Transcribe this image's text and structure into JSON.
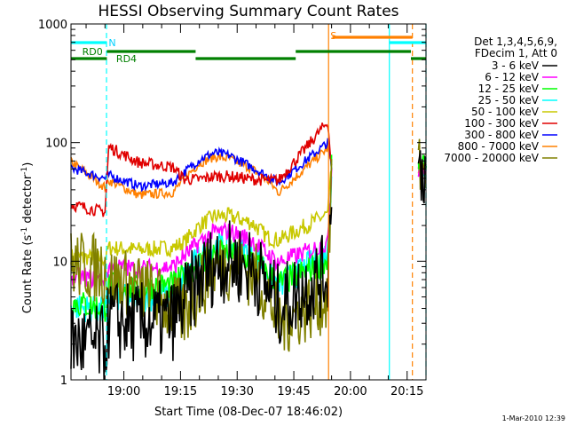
{
  "chart_data": {
    "type": "line",
    "title": "HESSI Observing Summary Count Rates",
    "xlabel": "Start Time (08-Dec-07 18:46:02)",
    "ylabel_main": "Count Rate (s",
    "ylabel_sup1": "-1",
    "ylabel_mid": " detector",
    "ylabel_sup2": "-1",
    "ylabel_end": ")",
    "y_scale": "log",
    "ylim": [
      1,
      1000
    ],
    "xlim_minutes": [
      0,
      94
    ],
    "x_tick_minutes": [
      14,
      29,
      44,
      59,
      74,
      89
    ],
    "x_tick_labels": [
      "19:00",
      "19:15",
      "19:30",
      "19:45",
      "20:00",
      "20:15"
    ],
    "y_ticks": [
      1,
      10,
      100,
      1000
    ],
    "y_tick_labels": [
      "1",
      "10",
      "100",
      "1000"
    ],
    "legend_header": [
      "Det 1,3,4,5,6,9,",
      "FDecim 1, Att 0"
    ],
    "legend_placement": "right",
    "timestamp": "1-Mar-2010 12:39",
    "series": [
      {
        "name": "3 - 6 keV",
        "color": "#000000"
      },
      {
        "name": "6 - 12 keV",
        "color": "#ff00ff"
      },
      {
        "name": "12 - 25 keV",
        "color": "#00ff00"
      },
      {
        "name": "25 - 50 keV",
        "color": "#00ffff"
      },
      {
        "name": "50 - 100 keV",
        "color": "#c8c800"
      },
      {
        "name": "100 - 300 keV",
        "color": "#e00000"
      },
      {
        "name": "300 - 800 keV",
        "color": "#0000ff"
      },
      {
        "name": "800 - 7000 keV",
        "color": "#ff8000"
      },
      {
        "name": "7000 - 20000 keV",
        "color": "#808000"
      }
    ],
    "shape_x_minutes": [
      0,
      9,
      10,
      18,
      27,
      30,
      34,
      38,
      42,
      48,
      52,
      55,
      68,
      69,
      92,
      93
    ],
    "shape_values": [
      [
        2.1,
        1.9,
        3.2,
        3.0,
        3.2,
        4.5,
        7.0,
        9.5,
        10.0,
        8.8,
        6.0,
        4.2,
        8.0,
        60,
        60,
        60
      ],
      [
        7.5,
        7.0,
        9.0,
        8.6,
        9.0,
        11.0,
        14.5,
        17.5,
        17.8,
        15.0,
        11.5,
        9.8,
        14,
        60,
        60,
        60
      ],
      [
        4.5,
        4.0,
        6.2,
        5.9,
        6.3,
        7.5,
        9.6,
        11.5,
        11.6,
        10.0,
        7.8,
        6.5,
        10,
        60,
        60,
        60
      ],
      [
        4.2,
        3.8,
        5.0,
        4.8,
        5.2,
        7.5,
        11.0,
        13.5,
        13.6,
        11.5,
        8.5,
        6.2,
        12,
        60,
        60,
        60
      ],
      [
        11.0,
        10.5,
        13.0,
        12.5,
        13.0,
        14.5,
        20.0,
        24.0,
        24.0,
        21.0,
        16.0,
        15.0,
        25,
        60,
        60,
        60
      ],
      [
        30.0,
        26.0,
        92.0,
        68.0,
        62.0,
        49.0,
        49.0,
        52.0,
        52.0,
        49.0,
        48.0,
        48.0,
        150,
        60,
        60,
        60
      ],
      [
        61.0,
        50.0,
        53.0,
        43.0,
        46.0,
        56.0,
        72.0,
        82.0,
        78.0,
        62.0,
        52.0,
        46.0,
        100,
        60,
        60,
        60
      ],
      [
        69.0,
        42.0,
        48.0,
        36.0,
        38.0,
        50.0,
        67.0,
        76.0,
        73.0,
        60.0,
        48.0,
        38.0,
        90,
        60,
        60,
        60
      ],
      [
        9.5,
        8.5,
        7.0,
        6.0,
        4.0,
        3.5,
        6.0,
        9.0,
        9.2,
        8.0,
        5.5,
        3.0,
        5,
        60,
        60,
        60
      ]
    ],
    "annotations": [
      {
        "text": "N",
        "minute": 9.5,
        "color": "#00d0ff"
      },
      {
        "text": "S",
        "minute": 68.2,
        "color": "#ff8000"
      },
      {
        "text": "RD0",
        "minute": 2.5,
        "color": "#008000"
      },
      {
        "text": "RD4",
        "minute": 11.5,
        "color": "#008000"
      }
    ],
    "vertical_markers": [
      {
        "minute": 9.4,
        "color": "#00ffff",
        "dash": true
      },
      {
        "minute": 68.2,
        "color": "#ff8000",
        "dash": false
      },
      {
        "minute": 84.3,
        "color": "#00ffff",
        "dash": false
      },
      {
        "minute": 90.4,
        "color": "#ff8000",
        "dash": true
      },
      {
        "minute": 94.0,
        "color": "#00ffff",
        "dash": true
      }
    ],
    "state_bars": [
      {
        "color": "#00ffff",
        "level": 0,
        "from": 0,
        "to": 9.5
      },
      {
        "color": "#00ffff",
        "level": 0,
        "from": 84.3,
        "to": 94
      },
      {
        "color": "#ff8000",
        "level": 1,
        "from": 69.2,
        "to": 90.4
      },
      {
        "color": "#008000",
        "level": 2,
        "from": 9.5,
        "to": 33
      },
      {
        "color": "#008000",
        "level": 2,
        "from": 59.5,
        "to": 90
      },
      {
        "color": "#008000",
        "level": 3,
        "from": 0,
        "to": 9.5
      },
      {
        "color": "#008000",
        "level": 3,
        "from": 33,
        "to": 59.5
      },
      {
        "color": "#008000",
        "level": 3,
        "from": 90,
        "to": 94
      }
    ]
  }
}
